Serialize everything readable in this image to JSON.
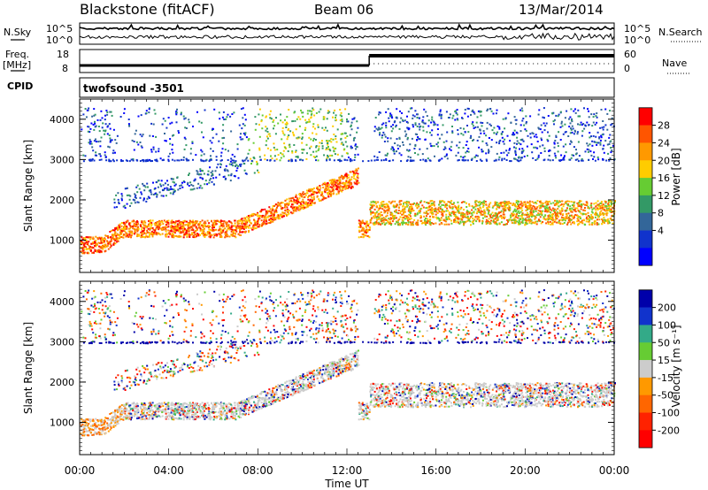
{
  "header": {
    "station": "Blackstone (fitACF)",
    "beam": "Beam 06",
    "date": "13/Mar/2014"
  },
  "top_panels": {
    "nsky_label": "N.Sky",
    "nsearch_label": "N.Search",
    "noise_tick_high": "10^5",
    "noise_tick_low": "10^0",
    "freq_label": "Freq.",
    "freq_unit": "[MHz]",
    "freq_tick_high": "18",
    "freq_tick_low": "8",
    "nave_tick_high": "60",
    "nave_tick_low": "0",
    "nave_label": "Nave",
    "cpid_label": "CPID",
    "cpid_value": "twofsound  -3501"
  },
  "chart_data": [
    {
      "type": "heatmap",
      "panel": "power",
      "ylabel": "Slant Range [km]",
      "ylim": [
        200,
        4500
      ],
      "y_ticks": [
        1000,
        2000,
        3000,
        4000
      ],
      "x_ticks": [
        "00:00",
        "04:00",
        "08:00",
        "12:00",
        "16:00",
        "20:00",
        "00:00"
      ],
      "xlim_hours": [
        0,
        24
      ],
      "colorbar": {
        "label": "Power [dB]",
        "ticks": [
          "28",
          "24",
          "20",
          "16",
          "12",
          "8",
          "4"
        ],
        "colors": [
          "#ff0000",
          "#ff5500",
          "#ff9900",
          "#ffcc00",
          "#66cc33",
          "#339966",
          "#336699",
          "#1133cc",
          "#0000ff"
        ]
      }
    },
    {
      "type": "heatmap",
      "panel": "velocity",
      "ylabel": "Slant Range [km]",
      "xlabel": "Time UT",
      "ylim": [
        200,
        4500
      ],
      "y_ticks": [
        1000,
        2000,
        3000,
        4000
      ],
      "x_ticks": [
        "00:00",
        "04:00",
        "08:00",
        "12:00",
        "16:00",
        "20:00",
        "00:00"
      ],
      "xlim_hours": [
        0,
        24
      ],
      "colorbar": {
        "label": "Velocity [m s⁻¹]",
        "ticks": [
          "200",
          "100",
          "50",
          "15",
          "-15",
          "-50",
          "-100",
          "-200"
        ],
        "colors": [
          "#0000aa",
          "#1133cc",
          "#33aa88",
          "#66cc33",
          "#cccccc",
          "#ff9900",
          "#ff6600",
          "#ff2200",
          "#ff0000"
        ]
      }
    }
  ]
}
